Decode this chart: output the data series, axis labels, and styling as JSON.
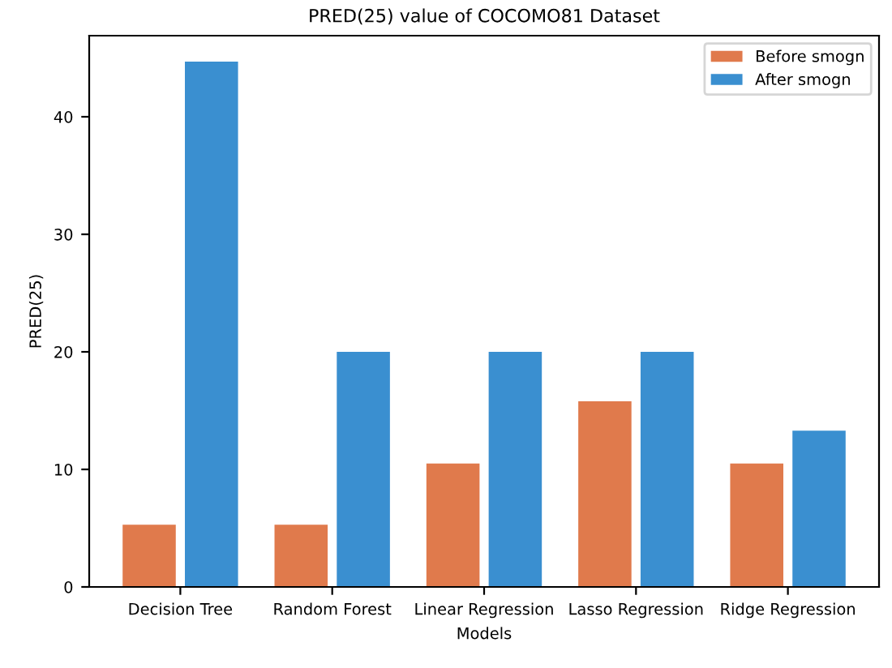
{
  "chart_data": {
    "type": "bar",
    "title": "PRED(25) value of COCOMO81 Dataset",
    "xlabel": "Models",
    "ylabel": "PRED(25)",
    "categories": [
      "Decision Tree",
      "Random Forest",
      "Linear Regression",
      "Lasso Regression",
      "Ridge Regression"
    ],
    "series": [
      {
        "name": "Before smogn",
        "color": "#e07a4c",
        "values": [
          5.3,
          5.3,
          10.5,
          15.8,
          10.5
        ]
      },
      {
        "name": "After smogn",
        "color": "#3a8fd0",
        "values": [
          44.7,
          20,
          20,
          20,
          13.3
        ]
      }
    ],
    "ylim": [
      0,
      46.9
    ],
    "yticks": [
      0,
      10,
      20,
      30,
      40
    ],
    "legend": "top right",
    "grid": false
  }
}
